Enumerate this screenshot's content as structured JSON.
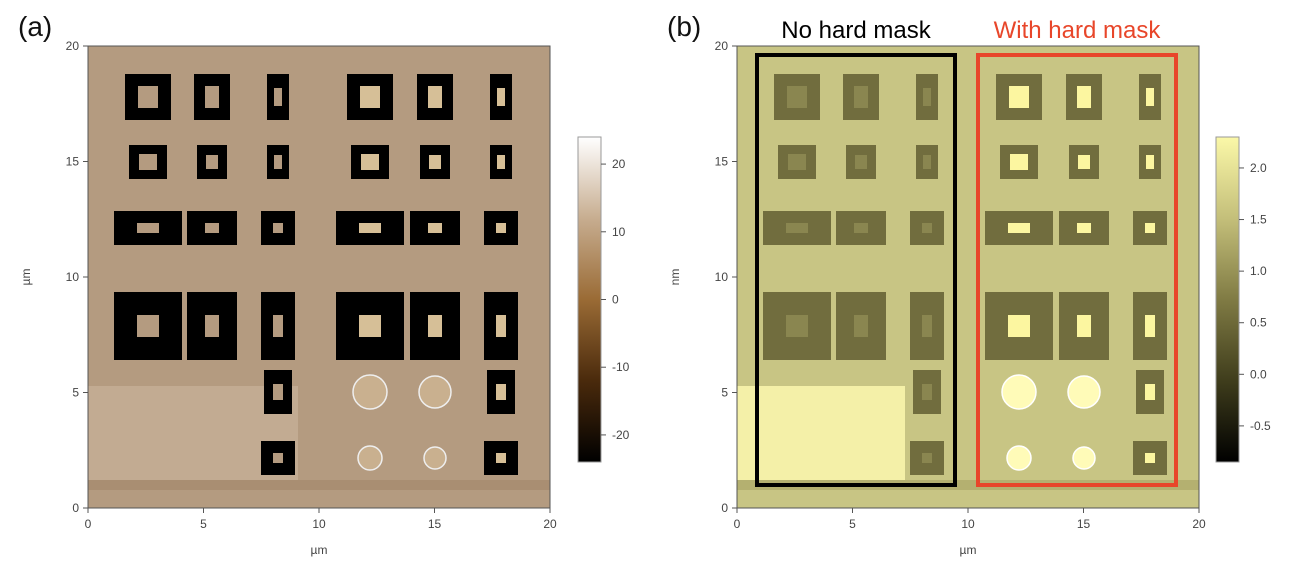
{
  "chart_data": [
    {
      "type": "image",
      "label": "(a)",
      "xlabel": "µm",
      "ylabel": "µm",
      "xlim": [
        0,
        20
      ],
      "ylim": [
        0,
        20
      ],
      "xticks": [
        0,
        5,
        10,
        15,
        20
      ],
      "yticks": [
        0,
        5,
        10,
        15,
        20
      ],
      "colorbar": {
        "clim": [
          -24,
          24
        ],
        "ticks": [
          -20,
          -10,
          0,
          10,
          20
        ],
        "colors": [
          "#000000",
          "#4a2a0c",
          "#9a6b35",
          "#c7ad90",
          "#ffffff"
        ]
      }
    },
    {
      "type": "image",
      "label": "(b)",
      "xlabel": "µm",
      "ylabel": "nm",
      "xlim": [
        0,
        20
      ],
      "ylim": [
        0,
        20
      ],
      "xticks": [
        0,
        5,
        10,
        15,
        20
      ],
      "yticks": [
        0,
        5,
        10,
        15,
        20
      ],
      "colorbar": {
        "clim": [
          -0.85,
          2.3
        ],
        "ticks": [
          {
            "value": -0.5,
            "label": "-0.5"
          },
          {
            "value": 0,
            "label": "0.0"
          },
          {
            "value": 0.5,
            "label": "0.5"
          },
          {
            "value": 1,
            "label": "1.0"
          },
          {
            "value": 1.5,
            "label": "1.5"
          },
          {
            "value": 2,
            "label": "2.0"
          }
        ],
        "colors": [
          "#000000",
          "#3f3d1c",
          "#807b44",
          "#c4bf7a",
          "#fbf8a8"
        ]
      },
      "annotations": [
        {
          "text": "No hard mask",
          "color": "#000000"
        },
        {
          "text": "With hard mask",
          "color": "#e8462a"
        }
      ]
    }
  ]
}
